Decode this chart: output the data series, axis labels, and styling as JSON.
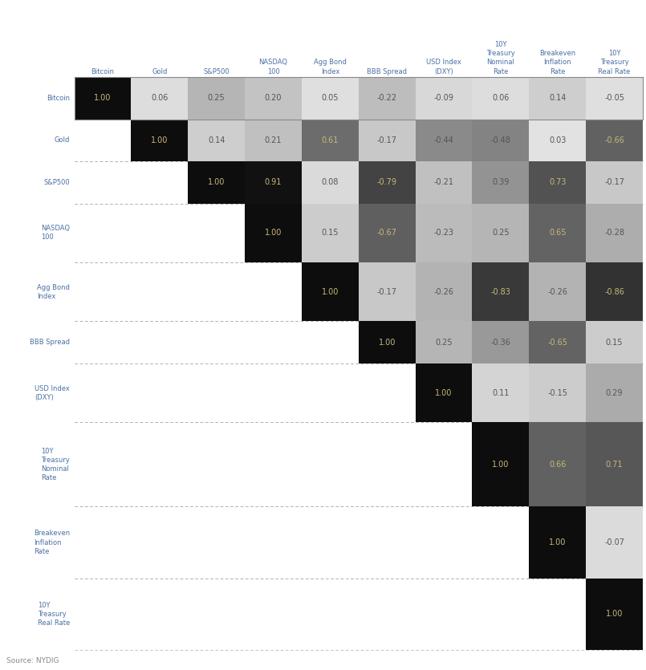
{
  "row_labels": [
    "Bitcoin",
    "Gold",
    "S&P500",
    "NASDAQ\n100",
    "Agg Bond\nIndex",
    "BBB Spread",
    "USD Index\n(DXY)",
    "10Y\nTreasury\nNominal\nRate",
    "Breakeven\nInflation\nRate",
    "10Y\nTreasury\nReal Rate"
  ],
  "col_labels": [
    "Bitcoin",
    "Gold",
    "S&P500",
    "NASDAQ\n100",
    "Agg Bond\nIndex",
    "BBB Spread",
    "USD Index\n(DXY)",
    "10Y\nTreasury\nNominal\nRate",
    "Breakeven\nInflation\nRate",
    "10Y\nTreasury\nReal Rate"
  ],
  "corr": [
    [
      1.0,
      0.06,
      0.25,
      0.2,
      0.05,
      -0.22,
      -0.09,
      0.06,
      0.14,
      -0.05
    ],
    [
      null,
      1.0,
      0.14,
      0.21,
      0.61,
      -0.17,
      -0.44,
      -0.48,
      0.03,
      -0.66
    ],
    [
      null,
      null,
      1.0,
      0.91,
      0.08,
      -0.79,
      -0.21,
      0.39,
      0.73,
      -0.17
    ],
    [
      null,
      null,
      null,
      1.0,
      0.15,
      -0.67,
      -0.23,
      0.25,
      0.65,
      -0.28
    ],
    [
      null,
      null,
      null,
      null,
      1.0,
      -0.17,
      -0.26,
      -0.83,
      -0.26,
      -0.86
    ],
    [
      null,
      null,
      null,
      null,
      null,
      1.0,
      0.25,
      -0.36,
      -0.65,
      0.15
    ],
    [
      null,
      null,
      null,
      null,
      null,
      null,
      1.0,
      0.11,
      -0.15,
      0.29
    ],
    [
      null,
      null,
      null,
      null,
      null,
      null,
      null,
      1.0,
      0.66,
      0.71
    ],
    [
      null,
      null,
      null,
      null,
      null,
      null,
      null,
      null,
      1.0,
      -0.07
    ],
    [
      null,
      null,
      null,
      null,
      null,
      null,
      null,
      null,
      null,
      1.0
    ]
  ],
  "source": "Source: NYDIG",
  "bg_color": "#ffffff",
  "header_color": "#4a6fa5",
  "row_label_color": "#4a6fa5",
  "light_text": "#c8b87a",
  "dark_text": "#555555",
  "n": 10,
  "figw": 8.05,
  "figh": 8.35,
  "row_line_counts": [
    1,
    1,
    1,
    2,
    2,
    1,
    2,
    4,
    3,
    3
  ]
}
